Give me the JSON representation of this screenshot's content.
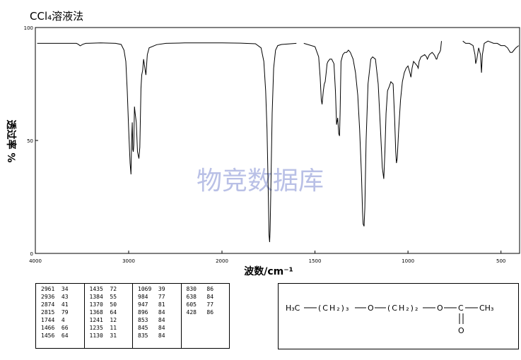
{
  "title": "CCl₄溶液法",
  "watermark": "物竞数据库",
  "chart_data": {
    "type": "line",
    "ylabel": "透过率 %",
    "xlabel": "波数/cm⁻¹",
    "xlim": [
      4000,
      400
    ],
    "ylim": [
      0,
      100
    ],
    "x_ticks": [
      "4000",
      "3000",
      "2000",
      "1500",
      "1000",
      "500"
    ],
    "y_ticks": [
      "100",
      "50",
      "0"
    ],
    "grid": false,
    "series": [
      {
        "segments": [
          [
            [
              3980,
              93
            ],
            [
              3700,
              93
            ],
            [
              3560,
              93
            ],
            [
              3540,
              92.6
            ],
            [
              3520,
              91.9
            ],
            [
              3490,
              92.6
            ],
            [
              3460,
              93
            ],
            [
              3300,
              93.2
            ],
            [
              3140,
              93
            ],
            [
              3080,
              92.5
            ],
            [
              3050,
              90
            ],
            [
              3030,
              85
            ],
            [
              3015,
              72
            ],
            [
              3000,
              55
            ],
            [
              2985,
              40
            ],
            [
              2975,
              35
            ],
            [
              2968,
              50
            ],
            [
              2961,
              58
            ],
            [
              2955,
              46
            ],
            [
              2950,
              45
            ],
            [
              2945,
              48
            ],
            [
              2938,
              65
            ],
            [
              2930,
              62
            ],
            [
              2918,
              58
            ],
            [
              2905,
              45
            ],
            [
              2890,
              42
            ],
            [
              2880,
              47
            ],
            [
              2868,
              73
            ],
            [
              2860,
              79
            ],
            [
              2850,
              81
            ],
            [
              2840,
              86
            ],
            [
              2815,
              79
            ],
            [
              2800,
              88
            ],
            [
              2780,
              91
            ],
            [
              2700,
              92.4
            ],
            [
              2600,
              93
            ],
            [
              2400,
              93.2
            ],
            [
              2000,
              93.2
            ],
            [
              1900,
              93.1
            ],
            [
              1820,
              92.8
            ],
            [
              1790,
              91
            ],
            [
              1775,
              85
            ],
            [
              1765,
              72
            ],
            [
              1758,
              55
            ],
            [
              1752,
              30
            ],
            [
              1747,
              8
            ],
            [
              1744,
              5
            ],
            [
              1741,
              10
            ],
            [
              1736,
              35
            ],
            [
              1730,
              62
            ],
            [
              1722,
              82
            ],
            [
              1712,
              90
            ],
            [
              1700,
              92
            ],
            [
              1680,
              92.5
            ],
            [
              1600,
              93
            ]
          ],
          [
            [
              1560,
              93
            ],
            [
              1500,
              91.5
            ],
            [
              1480,
              87
            ],
            [
              1472,
              78
            ],
            [
              1466,
              68
            ],
            [
              1462,
              66
            ],
            [
              1455,
              72
            ],
            [
              1450,
              75
            ],
            [
              1445,
              76
            ],
            [
              1440,
              80
            ],
            [
              1435,
              84
            ],
            [
              1430,
              85
            ],
            [
              1420,
              86
            ],
            [
              1410,
              86
            ],
            [
              1398,
              84
            ],
            [
              1390,
              72
            ],
            [
              1384,
              57
            ],
            [
              1378,
              60
            ],
            [
              1372,
              53
            ],
            [
              1368,
              52
            ],
            [
              1365,
              62
            ],
            [
              1360,
              85
            ],
            [
              1350,
              88
            ],
            [
              1340,
              89
            ],
            [
              1330,
              89
            ],
            [
              1320,
              90
            ],
            [
              1310,
              89
            ],
            [
              1295,
              86
            ],
            [
              1282,
              80
            ],
            [
              1270,
              70
            ],
            [
              1260,
              55
            ],
            [
              1250,
              35
            ],
            [
              1244,
              18
            ],
            [
              1241,
              13
            ],
            [
              1236,
              12
            ],
            [
              1232,
              20
            ],
            [
              1225,
              50
            ],
            [
              1215,
              75
            ],
            [
              1200,
              86
            ],
            [
              1190,
              87
            ],
            [
              1175,
              86
            ],
            [
              1160,
              75
            ],
            [
              1148,
              55
            ],
            [
              1138,
              38
            ],
            [
              1130,
              33
            ],
            [
              1124,
              45
            ],
            [
              1118,
              62
            ],
            [
              1110,
              72
            ],
            [
              1100,
              74
            ],
            [
              1092,
              76
            ],
            [
              1080,
              75
            ],
            [
              1072,
              60
            ],
            [
              1066,
              45
            ],
            [
              1062,
              40
            ],
            [
              1058,
              42
            ],
            [
              1050,
              55
            ],
            [
              1040,
              68
            ],
            [
              1030,
              76
            ],
            [
              1020,
              80
            ],
            [
              1010,
              82
            ],
            [
              1000,
              83
            ],
            [
              990,
              80
            ],
            [
              984,
              78
            ],
            [
              978,
              82
            ],
            [
              970,
              85
            ],
            [
              960,
              84
            ],
            [
              950,
              83
            ],
            [
              945,
              82
            ],
            [
              940,
              85
            ],
            [
              930,
              87
            ],
            [
              910,
              88
            ],
            [
              900,
              87
            ],
            [
              896,
              86
            ],
            [
              885,
              88
            ],
            [
              870,
              89
            ],
            [
              860,
              88
            ],
            [
              853,
              87
            ],
            [
              848,
              86
            ],
            [
              845,
              86
            ],
            [
              838,
              88
            ],
            [
              830,
              89
            ],
            [
              825,
              90
            ],
            [
              820,
              94
            ]
          ],
          [
            [
              705,
              94
            ],
            [
              690,
              93
            ],
            [
              670,
              93
            ],
            [
              650,
              92
            ],
            [
              640,
              88
            ],
            [
              636,
              84
            ],
            [
              630,
              86
            ],
            [
              620,
              91
            ],
            [
              610,
              88
            ],
            [
              605,
              80
            ],
            [
              600,
              88
            ],
            [
              590,
              93
            ],
            [
              570,
              94
            ],
            [
              540,
              93
            ],
            [
              520,
              93
            ],
            [
              500,
              92
            ],
            [
              480,
              92
            ],
            [
              465,
              91
            ],
            [
              450,
              89
            ],
            [
              440,
              89
            ],
            [
              430,
              90
            ],
            [
              420,
              91
            ],
            [
              405,
              92
            ]
          ]
        ]
      }
    ]
  },
  "peaks": [
    [
      [
        "2961",
        "34"
      ],
      [
        "2936",
        "43"
      ],
      [
        "2874",
        "41"
      ],
      [
        "2815",
        "79"
      ],
      [
        "1744",
        "4"
      ],
      [
        "1466",
        "66"
      ],
      [
        "1456",
        "64"
      ]
    ],
    [
      [
        "1435",
        "72"
      ],
      [
        "1384",
        "55"
      ],
      [
        "1370",
        "50"
      ],
      [
        "1368",
        "64"
      ],
      [
        "1241",
        "12"
      ],
      [
        "1235",
        "11"
      ],
      [
        "1130",
        "31"
      ]
    ],
    [
      [
        "1069",
        "39"
      ],
      [
        "984",
        "77"
      ],
      [
        "947",
        "81"
      ],
      [
        "896",
        "84"
      ],
      [
        "853",
        "84"
      ],
      [
        "845",
        "84"
      ],
      [
        "835",
        "84"
      ]
    ],
    [
      [
        "830",
        "86"
      ],
      [
        "638",
        "84"
      ],
      [
        "605",
        "77"
      ],
      [
        "428",
        "86"
      ]
    ]
  ],
  "structure": {
    "h3c": "H₃C",
    "ch2_a": "(CH₂)₃",
    "o1": "O",
    "ch2_b": "(CH₂)₂",
    "o2": "O",
    "c": "C",
    "ch3": "CH₃",
    "o_double": "O"
  }
}
